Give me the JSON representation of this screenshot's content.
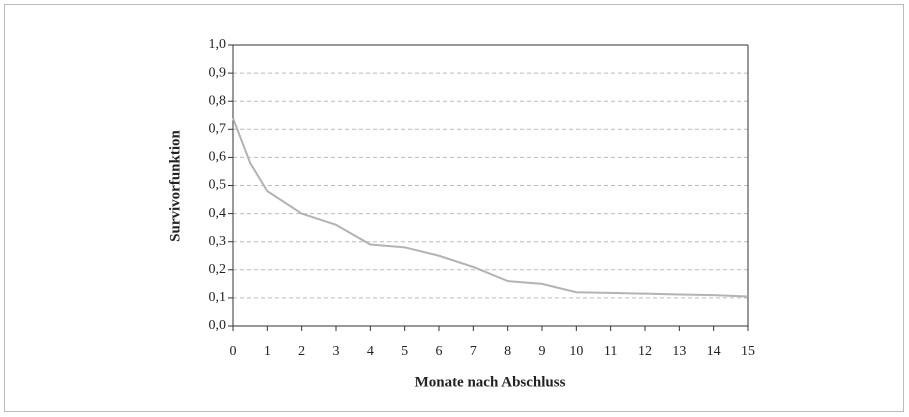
{
  "chart_data": {
    "type": "line",
    "xlabel": "Monate nach Abschluss",
    "ylabel": "Survivorfunktion",
    "x": [
      0,
      0.5,
      1,
      2,
      3,
      4,
      5,
      6,
      7,
      8,
      9,
      10,
      11,
      12,
      13,
      14,
      15
    ],
    "series": [
      {
        "name": "Survivorfunktion",
        "color": "#b9b1b1",
        "values": [
          0.74,
          0.58,
          0.48,
          0.4,
          0.36,
          0.29,
          0.28,
          0.25,
          0.21,
          0.16,
          0.15,
          0.12,
          0.118,
          0.115,
          0.112,
          0.11,
          0.105
        ]
      }
    ],
    "xlim": [
      0,
      15
    ],
    "xticks": [
      0,
      1,
      2,
      3,
      4,
      5,
      6,
      7,
      8,
      9,
      10,
      11,
      12,
      13,
      14,
      15
    ],
    "ylim": [
      0,
      1
    ],
    "yticks": [
      {
        "value": 0,
        "label": "0,0"
      },
      {
        "value": 0.1,
        "label": "0,1"
      },
      {
        "value": 0.2,
        "label": "0,2"
      },
      {
        "value": 0.3,
        "label": "0,3"
      },
      {
        "value": 0.4,
        "label": "0,4"
      },
      {
        "value": 0.5,
        "label": "0,5"
      },
      {
        "value": 0.6,
        "label": "0,6"
      },
      {
        "value": 0.7,
        "label": "0,7"
      },
      {
        "value": 0.8,
        "label": "0,8"
      },
      {
        "value": 0.9,
        "label": "0,9"
      },
      {
        "value": 1,
        "label": "1,0"
      }
    ],
    "grid": true
  }
}
